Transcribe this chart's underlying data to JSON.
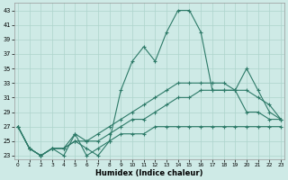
{
  "title": "",
  "xlabel": "Humidex (Indice chaleur)",
  "ylabel": "",
  "background_color": "#ceeae6",
  "line_color": "#2d7a68",
  "grid_color": "#aed4cc",
  "ylim": [
    22.5,
    44
  ],
  "xlim": [
    -0.3,
    23.3
  ],
  "yticks": [
    23,
    25,
    27,
    29,
    31,
    33,
    35,
    37,
    39,
    41,
    43
  ],
  "xticks": [
    0,
    1,
    2,
    3,
    4,
    5,
    6,
    7,
    8,
    9,
    10,
    11,
    12,
    13,
    14,
    15,
    16,
    17,
    18,
    19,
    20,
    21,
    22,
    23
  ],
  "series": [
    {
      "x": [
        0,
        1,
        2,
        3,
        4,
        5,
        6,
        7,
        8,
        9,
        10,
        11,
        12,
        13,
        14,
        15,
        16,
        17,
        18,
        19,
        20,
        21,
        22,
        23
      ],
      "y": [
        27,
        24,
        23,
        24,
        23,
        26,
        23,
        24,
        25,
        32,
        36,
        38,
        36,
        40,
        43,
        43,
        40,
        32,
        32,
        32,
        29,
        29,
        28,
        28
      ]
    },
    {
      "x": [
        0,
        1,
        2,
        3,
        4,
        5,
        6,
        7,
        8,
        9,
        10,
        11,
        12,
        13,
        14,
        15,
        16,
        17,
        18,
        19,
        20,
        21,
        22,
        23
      ],
      "y": [
        27,
        24,
        23,
        24,
        24,
        26,
        25,
        26,
        27,
        28,
        29,
        30,
        31,
        32,
        33,
        33,
        33,
        33,
        33,
        32,
        35,
        32,
        29,
        28
      ]
    },
    {
      "x": [
        0,
        1,
        2,
        3,
        4,
        5,
        6,
        7,
        8,
        9,
        10,
        11,
        12,
        13,
        14,
        15,
        16,
        17,
        18,
        19,
        20,
        21,
        22,
        23
      ],
      "y": [
        27,
        24,
        23,
        24,
        24,
        25,
        25,
        25,
        26,
        27,
        28,
        28,
        29,
        30,
        31,
        31,
        32,
        32,
        32,
        32,
        32,
        31,
        30,
        28
      ]
    },
    {
      "x": [
        0,
        1,
        2,
        3,
        4,
        5,
        6,
        7,
        8,
        9,
        10,
        11,
        12,
        13,
        14,
        15,
        16,
        17,
        18,
        19,
        20,
        21,
        22,
        23
      ],
      "y": [
        27,
        24,
        23,
        24,
        24,
        25,
        24,
        23,
        25,
        26,
        26,
        26,
        27,
        27,
        27,
        27,
        27,
        27,
        27,
        27,
        27,
        27,
        27,
        27
      ]
    }
  ]
}
